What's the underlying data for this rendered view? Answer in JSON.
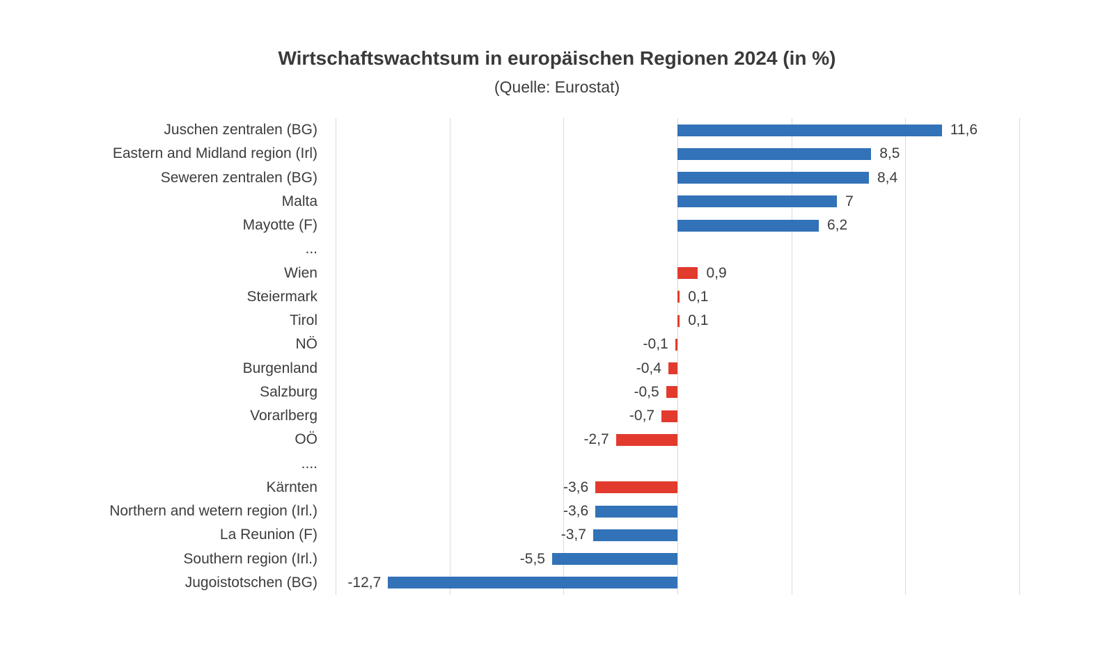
{
  "chart_data": {
    "type": "bar",
    "orientation": "horizontal",
    "title": "Wirtschaftswachtsum in europäischen Regionen 2024 (in %)",
    "subtitle": "(Quelle: Eurostat)",
    "xlabel": "",
    "ylabel": "",
    "xlim": [
      -15,
      15
    ],
    "gridline_step": 5,
    "grid": true,
    "legend_position": "none",
    "axis_tick_labels_visible": false,
    "colors": {
      "blue": "#3272b8",
      "red": "#e23a2c",
      "gridline": "#d9d9d9",
      "text": "#3c3c3c"
    },
    "rows": [
      {
        "label": "Juschen zentralen (BG)",
        "value": 11.6,
        "value_label": "11,6",
        "color": "blue"
      },
      {
        "label": "Eastern and Midland region (Irl)",
        "value": 8.5,
        "value_label": "8,5",
        "color": "blue"
      },
      {
        "label": "Seweren zentralen (BG)",
        "value": 8.4,
        "value_label": "8,4",
        "color": "blue"
      },
      {
        "label": "Malta",
        "value": 7,
        "value_label": "7",
        "color": "blue"
      },
      {
        "label": "Mayotte (F)",
        "value": 6.2,
        "value_label": "6,2",
        "color": "blue"
      },
      {
        "label": "...",
        "value": null,
        "value_label": null,
        "color": null
      },
      {
        "label": "Wien",
        "value": 0.9,
        "value_label": "0,9",
        "color": "red"
      },
      {
        "label": "Steiermark",
        "value": 0.1,
        "value_label": "0,1",
        "color": "red"
      },
      {
        "label": "Tirol",
        "value": 0.1,
        "value_label": "0,1",
        "color": "red"
      },
      {
        "label": "NÖ",
        "value": -0.1,
        "value_label": "-0,1",
        "color": "red"
      },
      {
        "label": "Burgenland",
        "value": -0.4,
        "value_label": "-0,4",
        "color": "red"
      },
      {
        "label": "Salzburg",
        "value": -0.5,
        "value_label": "-0,5",
        "color": "red"
      },
      {
        "label": "Vorarlberg",
        "value": -0.7,
        "value_label": "-0,7",
        "color": "red"
      },
      {
        "label": "OÖ",
        "value": -2.7,
        "value_label": "-2,7",
        "color": "red"
      },
      {
        "label": "....",
        "value": null,
        "value_label": null,
        "color": null
      },
      {
        "label": "Kärnten",
        "value": -3.6,
        "value_label": "-3,6",
        "color": "red"
      },
      {
        "label": "Northern and wetern region (Irl.)",
        "value": -3.6,
        "value_label": "-3,6",
        "color": "blue"
      },
      {
        "label": "La Reunion (F)",
        "value": -3.7,
        "value_label": "-3,7",
        "color": "blue"
      },
      {
        "label": "Southern region (Irl.)",
        "value": -5.5,
        "value_label": "-5,5",
        "color": "blue"
      },
      {
        "label": "Jugoistotschen (BG)",
        "value": -12.7,
        "value_label": "-12,7",
        "color": "blue"
      }
    ]
  }
}
